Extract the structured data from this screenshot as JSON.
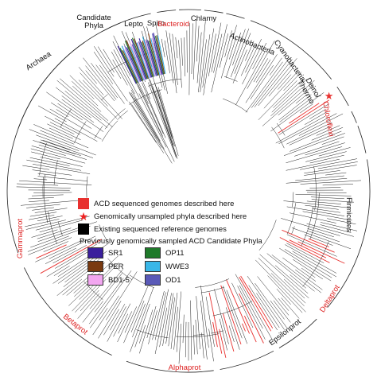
{
  "clades": [
    {
      "id": "archaea",
      "label": "Archaea",
      "color": "#111111"
    },
    {
      "id": "candidate-phyla",
      "label": "Candidate\nPhyla",
      "color": "#111111"
    },
    {
      "id": "lepto",
      "label": "Lepto",
      "color": "#111111"
    },
    {
      "id": "spiro",
      "label": "Spiro",
      "color": "#111111"
    },
    {
      "id": "bacteroid",
      "label": "Bacteroid",
      "color": "#d22222"
    },
    {
      "id": "chlamy",
      "label": "Chlamy",
      "color": "#111111"
    },
    {
      "id": "actinobacteria",
      "label": "Actinobacteria",
      "color": "#111111"
    },
    {
      "id": "cyanobacteria",
      "label": "Cyanobacteria",
      "color": "#111111"
    },
    {
      "id": "deino-thermo",
      "label": "Deino/\nThermo",
      "color": "#111111"
    },
    {
      "id": "chloroflexi",
      "label": "Chloroflexi",
      "color": "#d22222"
    },
    {
      "id": "firmicutes",
      "label": "Firmicutes",
      "color": "#111111"
    },
    {
      "id": "deltaprot",
      "label": "Deltaprot",
      "color": "#d22222"
    },
    {
      "id": "epsilonprot",
      "label": "Epsilonprot",
      "color": "#111111"
    },
    {
      "id": "alphaprot",
      "label": "Alphaprot",
      "color": "#d22222"
    },
    {
      "id": "betaprot",
      "label": "Betaprot",
      "color": "#d22222"
    },
    {
      "id": "gammaprot",
      "label": "Gammaprot",
      "color": "#d22222"
    }
  ],
  "legend": {
    "acd_sequenced": {
      "label": "ACD sequenced genomes described here",
      "color": "#e8312f"
    },
    "unsampled": {
      "label": "Genomically unsampled phyla described here",
      "color": "#e8312f"
    },
    "existing": {
      "label": "Existing sequenced reference genomes",
      "color": "#000000"
    },
    "previously_title": "Previously genomically sampled ACD Candidate Phyla",
    "phyla": [
      {
        "label": "SR1",
        "color": "#3a1f9c"
      },
      {
        "label": "OP11",
        "color": "#1f7a2a"
      },
      {
        "label": "PER",
        "color": "#7a3a10"
      },
      {
        "label": "WWE3",
        "color": "#39b7e8"
      },
      {
        "label": "BD1-5",
        "color": "#f2a6f0"
      },
      {
        "label": "OD1",
        "color": "#5a5ab8"
      }
    ]
  },
  "colors": {
    "branch": "#222222",
    "acd_branch": "#e8312f"
  }
}
